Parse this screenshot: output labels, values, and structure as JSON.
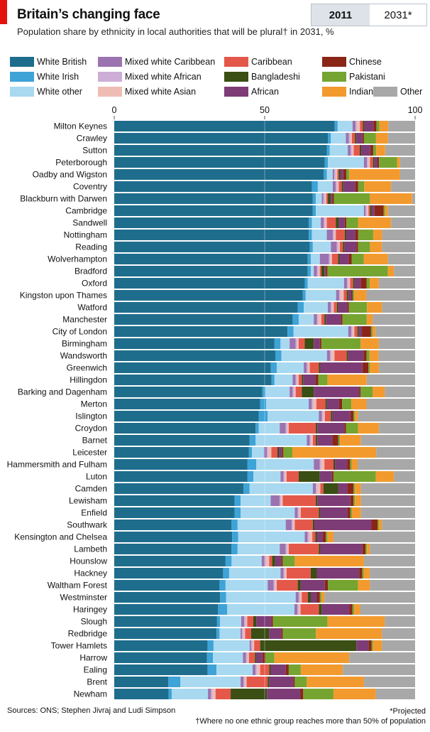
{
  "header": {
    "title": "Britain’s changing face",
    "subtitle": "Population share by ethnicity in local authorities that will be plural† in 2031, %",
    "toggle_2011": "2011",
    "toggle_2031": "2031*"
  },
  "footer": {
    "sources": "Sources: ONS; Stephen Jivraj and Ludi Simpson",
    "note1": "*Projected",
    "note2": "†Where no one ethnic group reaches more than 50% of population"
  },
  "colors": {
    "White British": "#1f6d8c",
    "White Irish": "#3ea3d6",
    "White other": "#a8d9f0",
    "Mixed white Caribbean": "#9b73b0",
    "Mixed white African": "#cdaed6",
    "Mixed white Asian": "#efbcb4",
    "Caribbean": "#e4584a",
    "Bangladeshi": "#3b4e14",
    "African": "#7e3c77",
    "Chinese": "#8a2618",
    "Pakistani": "#76a431",
    "Indian": "#f39a2e",
    "Other": "#a8a8a8"
  },
  "chart_data": {
    "type": "bar",
    "orientation": "horizontal",
    "stacked": true,
    "xlim": [
      0,
      100
    ],
    "xticks": [
      0,
      50,
      100
    ],
    "legend_position": "top",
    "series_order": [
      "White British",
      "White Irish",
      "White other",
      "Mixed white Caribbean",
      "Mixed white African",
      "Mixed white Asian",
      "Caribbean",
      "Bangladeshi",
      "African",
      "Chinese",
      "Pakistani",
      "Indian",
      "Other"
    ],
    "legend_rows": [
      [
        "White British",
        "Mixed white Caribbean",
        "Caribbean",
        "Chinese"
      ],
      [
        "White Irish",
        "Mixed white African",
        "Bangladeshi",
        "Pakistani"
      ],
      [
        "White other",
        "Mixed white Asian",
        "African",
        "Indian",
        "Other"
      ]
    ],
    "categories": [
      "Milton Keynes",
      "Crawley",
      "Sutton",
      "Peterborough",
      "Oadby and Wigston",
      "Coventry",
      "Blackburn with Darwen",
      "Cambridge",
      "Sandwell",
      "Nottingham",
      "Reading",
      "Wolverhampton",
      "Bradford",
      "Oxford",
      "Kingston upon Thames",
      "Watford",
      "Manchester",
      "City of London",
      "Birmingham",
      "Wandsworth",
      "Greenwich",
      "Hillingdon",
      "Barking and Dagenham",
      "Merton",
      "Islington",
      "Croydon",
      "Barnet",
      "Leicester",
      "Hammersmith and Fulham",
      "Luton",
      "Camden",
      "Lewisham",
      "Enfield",
      "Southwark",
      "Kensington and Chelsea",
      "Lambeth",
      "Hounslow",
      "Hackney",
      "Waltham Forest",
      "Westminster",
      "Haringey",
      "Slough",
      "Redbridge",
      "Tower Hamlets",
      "Harrow",
      "Ealing",
      "Brent",
      "Newham"
    ],
    "rows": [
      [
        74,
        1,
        5,
        1,
        0.5,
        1,
        1,
        0.5,
        3,
        1,
        1,
        3,
        9
      ],
      [
        71,
        1,
        5,
        1,
        0.5,
        0.5,
        1,
        0.5,
        2,
        0.5,
        4,
        4,
        9
      ],
      [
        71,
        1,
        6,
        1,
        0.5,
        0.5,
        2,
        0.5,
        3,
        1,
        1,
        3,
        10
      ],
      [
        70,
        1,
        12,
        1,
        0.5,
        0.5,
        1,
        0.5,
        1,
        0.5,
        6,
        1,
        5
      ],
      [
        70,
        1,
        2,
        0.5,
        0.5,
        0.5,
        0.5,
        0.5,
        1,
        1,
        1,
        17,
        5
      ],
      [
        66,
        2,
        5,
        1,
        0.5,
        0.5,
        1,
        0.5,
        4,
        1,
        2,
        9,
        8
      ],
      [
        66,
        1,
        2,
        0.5,
        0.5,
        0.5,
        0.5,
        1,
        0.5,
        0.5,
        12,
        14,
        1
      ],
      [
        66,
        1,
        16,
        0.5,
        0.5,
        0.5,
        0.5,
        0.5,
        1,
        3,
        0.5,
        1,
        9
      ],
      [
        65,
        1,
        3,
        1,
        0.5,
        0.5,
        3,
        1,
        2,
        0.5,
        4,
        11,
        8
      ],
      [
        65,
        1,
        5,
        2,
        0.5,
        0.5,
        3,
        0.5,
        3,
        1,
        5,
        3,
        11
      ],
      [
        65,
        1,
        6,
        2,
        0.5,
        0.5,
        1,
        0.5,
        4,
        0.5,
        4,
        4,
        11
      ],
      [
        64,
        1,
        3,
        3,
        0.5,
        0.5,
        2,
        0.5,
        3,
        1,
        4,
        8,
        9
      ],
      [
        64,
        1,
        1,
        1,
        0.5,
        0.5,
        0.5,
        1,
        0.5,
        0.5,
        20,
        2,
        7
      ],
      [
        63,
        1,
        12,
        1,
        0.5,
        0.5,
        1,
        0.5,
        2,
        2,
        1,
        3,
        12
      ],
      [
        62,
        1,
        10,
        1,
        0.5,
        1,
        1,
        0.5,
        1,
        0.5,
        0.5,
        4,
        16
      ],
      [
        61,
        2,
        8,
        1,
        0.5,
        0.5,
        1,
        0.5,
        3,
        0.5,
        6,
        5,
        11
      ],
      [
        59,
        2,
        5,
        1,
        0.5,
        1,
        1,
        0.5,
        5,
        0.5,
        8,
        2,
        14
      ],
      [
        57,
        2,
        18,
        1,
        0.5,
        0.5,
        1,
        0.5,
        1,
        3,
        0.5,
        1,
        13
      ],
      [
        53,
        2,
        3,
        2,
        0.5,
        0.5,
        2,
        3,
        2,
        0.5,
        13,
        6,
        12
      ],
      [
        53,
        2,
        15,
        1,
        0.5,
        1,
        4,
        0.5,
        5,
        1,
        1,
        3,
        12
      ],
      [
        52,
        2,
        9,
        1,
        0.5,
        0.5,
        3,
        0.5,
        14,
        2,
        0.5,
        3,
        12
      ],
      [
        52,
        1,
        6,
        1,
        0.5,
        0.5,
        1,
        0.5,
        4,
        1,
        3,
        13,
        16
      ],
      [
        49,
        1,
        8,
        1,
        0.5,
        0.5,
        2,
        4,
        15,
        0.5,
        4,
        4,
        10
      ],
      [
        48,
        2,
        14,
        1,
        0.5,
        1,
        3,
        0.5,
        4,
        1,
        3,
        5,
        16
      ],
      [
        48,
        3,
        17,
        1,
        0.5,
        0.5,
        2,
        0.5,
        6,
        1,
        0.5,
        1,
        19
      ],
      [
        47,
        1,
        7,
        2,
        0.5,
        0.5,
        9,
        0.5,
        9,
        0.5,
        4,
        7,
        12
      ],
      [
        45,
        2,
        17,
        1,
        0.5,
        0.5,
        1,
        0.5,
        5,
        2,
        0.5,
        7,
        18
      ],
      [
        45,
        1,
        4,
        1,
        0.5,
        1,
        2,
        0.5,
        1,
        0.5,
        3,
        28,
        13
      ],
      [
        44,
        3,
        19,
        2,
        0.5,
        1,
        3,
        0.5,
        4,
        1,
        0.5,
        2,
        19
      ],
      [
        44,
        2,
        9,
        1,
        0.5,
        0.5,
        4,
        7,
        4,
        0.5,
        14,
        6,
        7
      ],
      [
        43,
        2,
        21,
        1,
        0.5,
        1,
        1,
        5,
        3,
        2,
        0.5,
        2,
        18
      ],
      [
        40,
        2,
        10,
        3,
        0.5,
        0.5,
        11,
        0.5,
        11,
        1,
        0.5,
        2,
        18
      ],
      [
        40,
        2,
        18,
        1,
        0.5,
        0.5,
        6,
        0.5,
        9,
        1,
        0.5,
        3,
        18
      ],
      [
        39,
        2,
        16,
        2,
        0.5,
        0.5,
        6,
        0.5,
        19,
        2,
        0.5,
        1,
        11
      ],
      [
        39,
        2,
        22,
        1,
        0.5,
        1,
        1,
        0.5,
        2,
        1,
        0.5,
        2,
        27
      ],
      [
        39,
        2,
        14,
        2,
        0.5,
        0.5,
        10,
        0.5,
        14,
        1,
        0.5,
        1,
        15
      ],
      [
        37,
        2,
        10,
        1,
        0.5,
        1,
        1,
        1,
        2,
        0.5,
        4,
        23,
        17
      ],
      [
        36,
        2,
        17,
        1,
        0.5,
        0.5,
        8,
        2,
        14,
        1,
        0.5,
        2,
        15
      ],
      [
        35,
        2,
        14,
        2,
        0.5,
        0.5,
        7,
        1,
        8,
        1,
        10,
        4,
        15
      ],
      [
        35,
        2,
        23,
        1,
        0.5,
        0.5,
        2,
        1,
        2,
        1,
        0.5,
        1,
        30
      ],
      [
        34,
        3,
        22,
        1,
        0.5,
        0.5,
        6,
        1,
        9,
        1,
        0.5,
        2,
        18
      ],
      [
        34,
        1,
        7,
        1,
        0.5,
        0.5,
        2,
        1,
        5,
        0.5,
        18,
        19,
        10
      ],
      [
        34,
        1,
        7,
        0.5,
        0.5,
        0.5,
        2,
        6,
        4,
        0.5,
        11,
        22,
        11
      ],
      [
        31,
        2,
        12,
        0.5,
        0.5,
        0.5,
        2,
        32,
        4,
        1,
        0.5,
        3,
        11
      ],
      [
        31,
        2,
        10,
        1,
        0.5,
        0.5,
        2,
        0.5,
        2,
        1,
        3,
        25,
        22
      ],
      [
        31,
        3,
        12,
        1,
        0.5,
        1,
        3,
        0.5,
        5,
        1,
        4,
        14,
        24
      ],
      [
        18,
        4,
        20,
        1,
        0.5,
        0.5,
        7,
        0.5,
        8,
        0.5,
        4,
        19,
        17
      ],
      [
        18,
        1,
        12,
        1,
        0.5,
        1,
        5,
        12,
        11,
        1,
        10,
        14,
        13
      ]
    ]
  }
}
